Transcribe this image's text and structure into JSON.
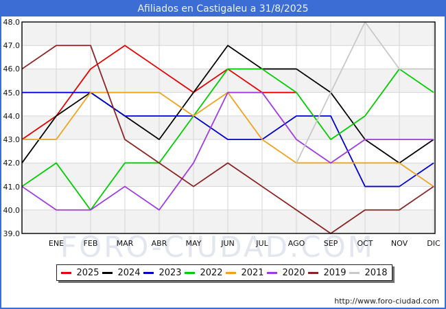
{
  "header": {
    "title": "Afiliados en Castigaleu a 31/8/2025",
    "bar_color": "#3c6dd5",
    "text_color": "#eef3fc"
  },
  "watermark": "FORO-CIUDAD.COM",
  "footer": {
    "url": "http://www.foro-ciudad.com"
  },
  "plot_style": {
    "band_color": "#f2f2f2",
    "grid_color": "#d6d6d6",
    "frame_color": "#000000"
  },
  "chart_data": {
    "type": "line",
    "title": "Afiliados en Castigaleu a 31/8/2025",
    "xlabel": "",
    "ylabel": "",
    "x_axis": {
      "months": [
        "ENE",
        "FEB",
        "MAR",
        "ABR",
        "MAY",
        "JUN",
        "JUL",
        "AGO",
        "SEP",
        "OCT",
        "NOV",
        "DIC"
      ],
      "note": "Each line begins at the left plot edge with the previous December value; month vertices sit on the labeled gridlines."
    },
    "y_axis": {
      "min": 39.0,
      "max": 48.0,
      "tick_step": 1.0,
      "tick_labels": [
        "48.0",
        "47.0",
        "46.0",
        "45.0",
        "44.0",
        "43.0",
        "42.0",
        "41.0",
        "40.0",
        "39.0"
      ]
    },
    "grid": true,
    "legend_position": "bottom",
    "series": [
      {
        "name": "2025",
        "color": "#e60000",
        "values": [
          43,
          44,
          46,
          47,
          46,
          45,
          46,
          45,
          45,
          null,
          null,
          null,
          null
        ]
      },
      {
        "name": "2024",
        "color": "#000000",
        "values": [
          42,
          44,
          45,
          44,
          43,
          45,
          47,
          46,
          46,
          45,
          43,
          42,
          43
        ]
      },
      {
        "name": "2023",
        "color": "#0000cc",
        "values": [
          45,
          45,
          45,
          44,
          44,
          44,
          43,
          43,
          44,
          44,
          41,
          41,
          42
        ]
      },
      {
        "name": "2022",
        "color": "#00cc00",
        "values": [
          41,
          42,
          40,
          42,
          42,
          44,
          46,
          46,
          45,
          43,
          44,
          46,
          45
        ]
      },
      {
        "name": "2021",
        "color": "#eea320",
        "values": [
          43,
          43,
          45,
          45,
          45,
          44,
          45,
          43,
          42,
          42,
          42,
          42,
          41
        ]
      },
      {
        "name": "2020",
        "color": "#9d3be0",
        "values": [
          41,
          40,
          40,
          41,
          40,
          42,
          45,
          45,
          43,
          42,
          43,
          43,
          43
        ]
      },
      {
        "name": "2019",
        "color": "#8b2323",
        "values": [
          46,
          47,
          47,
          43,
          42,
          41,
          42,
          41,
          40,
          39,
          40,
          40,
          41
        ]
      },
      {
        "name": "2018",
        "color": "#c8c8c8",
        "values": [
          null,
          null,
          null,
          null,
          null,
          null,
          null,
          null,
          42,
          45,
          48,
          46,
          46
        ]
      }
    ]
  }
}
